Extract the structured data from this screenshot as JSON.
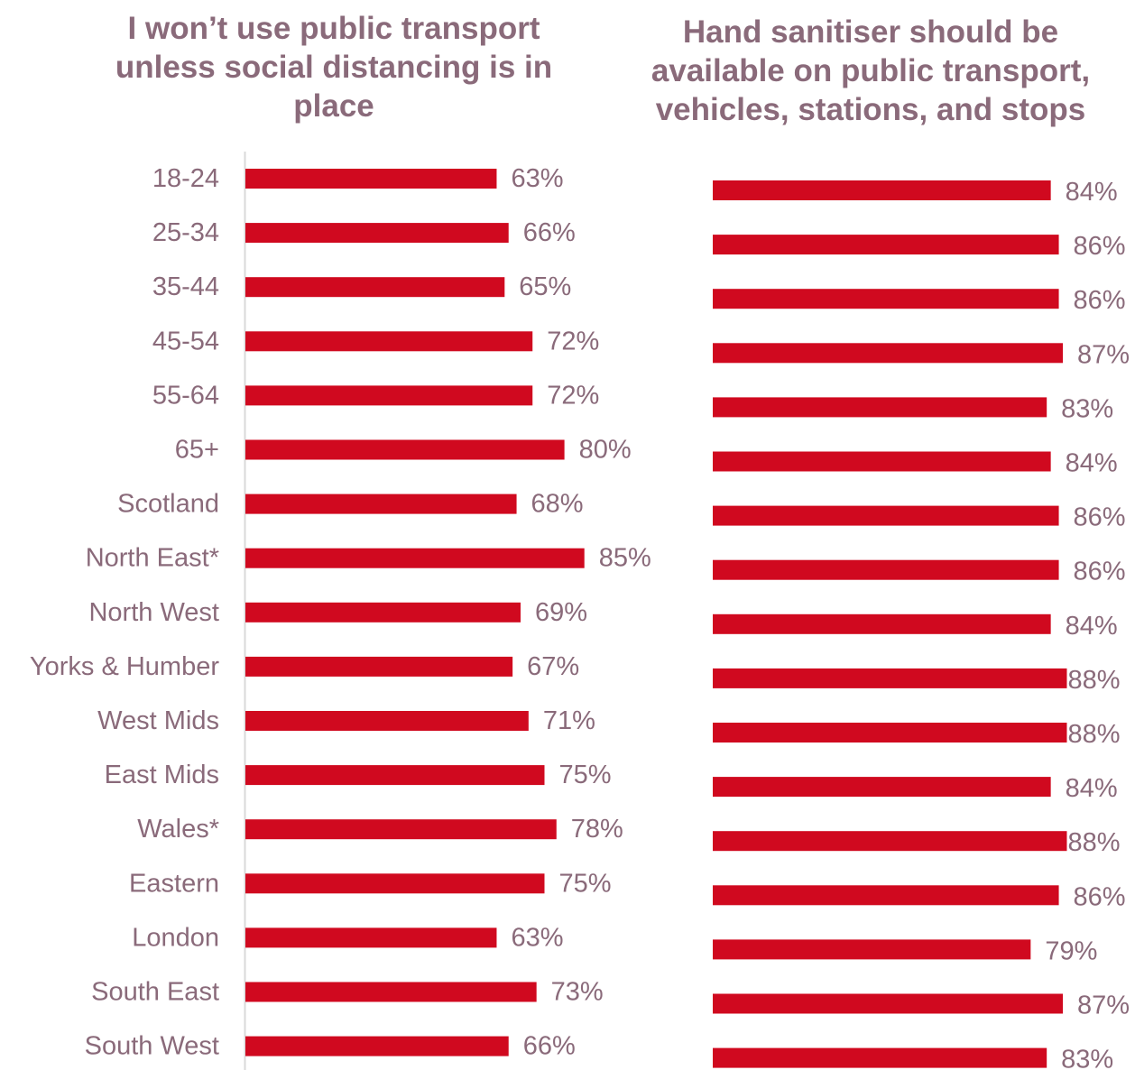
{
  "chart_data": [
    {
      "type": "bar",
      "orientation": "horizontal",
      "title": "I won’t use public transport unless social distancing is in place",
      "categories": [
        "18-24",
        "25-34",
        "35-44",
        "45-54",
        "55-64",
        "65+",
        "Scotland",
        "North East*",
        "North West",
        "Yorks & Humber",
        "West Mids",
        "East Mids",
        "Wales*",
        "Eastern",
        "London",
        "South East",
        "South West"
      ],
      "values": [
        63,
        66,
        65,
        72,
        72,
        80,
        68,
        85,
        69,
        67,
        71,
        75,
        78,
        75,
        63,
        73,
        66
      ],
      "value_labels": [
        "63%",
        "66%",
        "65%",
        "72%",
        "72%",
        "80%",
        "68%",
        "85%",
        "69%",
        "67%",
        "71%",
        "75%",
        "78%",
        "75%",
        "63%",
        "73%",
        "66%"
      ],
      "unit": "%",
      "xlim": [
        0,
        100
      ],
      "grid": false,
      "color": "#d0091f"
    },
    {
      "type": "bar",
      "orientation": "horizontal",
      "title": "Hand sanitiser should be available on public transport, vehicles, stations, and stops",
      "categories": [
        "18-24",
        "25-34",
        "35-44",
        "45-54",
        "55-64",
        "65+",
        "Scotland",
        "North East*",
        "North West",
        "Yorks & Humber",
        "West Mids",
        "East Mids",
        "Wales*",
        "Eastern",
        "London",
        "South East",
        "South West"
      ],
      "values": [
        84,
        86,
        86,
        87,
        83,
        84,
        86,
        86,
        84,
        88,
        88,
        84,
        88,
        86,
        79,
        87,
        83
      ],
      "value_labels": [
        "84%",
        "86%",
        "86%",
        "87%",
        "83%",
        "84%",
        "86%",
        "86%",
        "84%",
        "88%",
        "88%",
        "84%",
        "88%",
        "86%",
        "79%",
        "87%",
        "83%"
      ],
      "unit": "%",
      "grid": false,
      "color": "#d0091f"
    }
  ],
  "colors": {
    "bar": "#d0091f",
    "text": "#8a6a7a",
    "axis": "#d9d9d9"
  }
}
